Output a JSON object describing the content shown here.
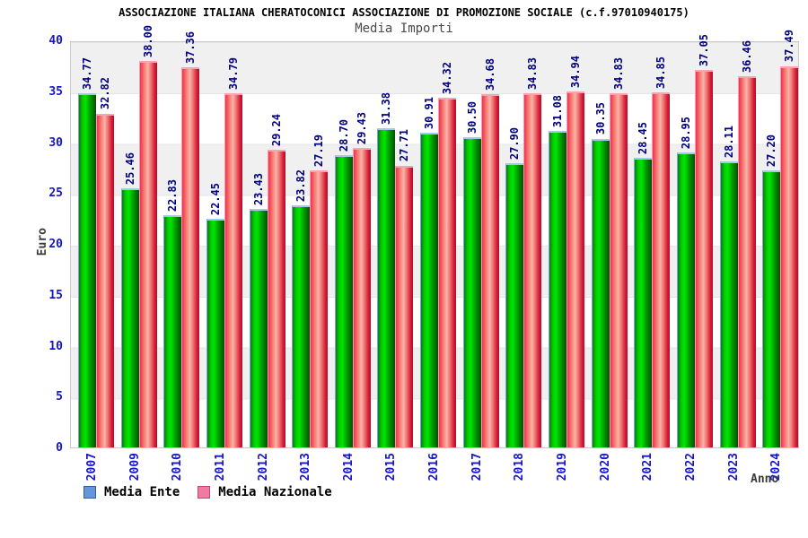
{
  "title": "ASSOCIAZIONE ITALIANA CHERATOCONICI ASSOCIAZIONE DI PROMOZIONE SOCIALE (c.f.97010940175)",
  "subtitle": "Media Importi",
  "y_axis": {
    "label": "Euro",
    "ticks": [
      0,
      5,
      10,
      15,
      20,
      25,
      30,
      35,
      40
    ],
    "max": 40
  },
  "x_axis": {
    "label": "Anno"
  },
  "legend": [
    {
      "label": "Media Ente"
    },
    {
      "label": "Media Nazionale"
    }
  ],
  "chart_data": {
    "type": "bar",
    "title": "Media Importi",
    "xlabel": "Anno",
    "ylabel": "Euro",
    "ylim": [
      0,
      40
    ],
    "grid": "horizontal-bands-every-5",
    "legend_position": "bottom-left",
    "categories": [
      "2007",
      "2009",
      "2010",
      "2011",
      "2012",
      "2013",
      "2014",
      "2015",
      "2016",
      "2017",
      "2018",
      "2019",
      "2020",
      "2021",
      "2022",
      "2023",
      "2024"
    ],
    "series": [
      {
        "name": "Media Ente",
        "values": [
          "34.77",
          "25.46",
          "22.83",
          "22.45",
          "23.43",
          "23.82",
          "28.70",
          "31.38",
          "30.91",
          "30.50",
          "27.90",
          "31.08",
          "30.35",
          "28.45",
          "28.95",
          "28.11",
          "27.20"
        ]
      },
      {
        "name": "Media Nazionale",
        "values": [
          "32.82",
          "38.00",
          "37.36",
          "34.79",
          "29.24",
          "27.19",
          "29.43",
          "27.71",
          "34.32",
          "34.68",
          "34.83",
          "34.94",
          "34.83",
          "34.85",
          "37.05",
          "36.46",
          "37.49"
        ]
      }
    ]
  },
  "colors": {
    "title": "#000000",
    "subtitle": "#4a4a4a",
    "axis-title": "#3a3a3a",
    "tick-label": "#1515cc",
    "value-label": "#000080",
    "stripe": "#f0f0f0",
    "plot-border": "#c9c9c9",
    "bar-ente-light": "#00e600",
    "bar-ente-mid": "#00b000",
    "bar-ente-dark": "#0a4d0a",
    "bar-ente-edge": "#117711",
    "bar-ente-cap": "#a6c8e8",
    "bar-ente-capedge": "#7da7d9",
    "bar-naz-light": "#f8b4ac",
    "bar-naz-mid": "#ef6a6a",
    "bar-naz-dark": "#b30d28",
    "bar-naz-edge": "#f2304e",
    "bar-naz-cap": "#ffa0b4",
    "bar-naz-capedge": "#ff9ab5",
    "legend-ente-fill": "#6596dc",
    "legend-ente-border": "#2e5f9e",
    "legend-naz-fill": "#ef7ba1",
    "legend-naz-border": "#c14579"
  }
}
